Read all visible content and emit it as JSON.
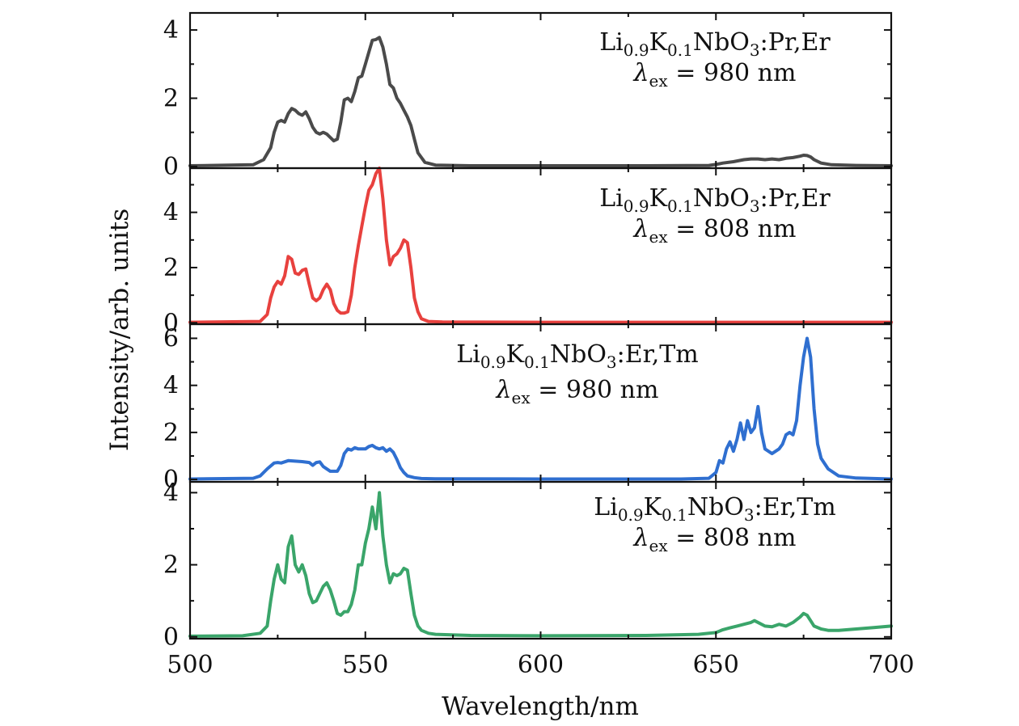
{
  "chart_data": {
    "type": "line",
    "xlabel": "Wavelength/nm",
    "ylabel": "Intensity/arb. units",
    "xlim": [
      500,
      700
    ],
    "x_ticks": [
      500,
      550,
      600,
      650,
      700
    ],
    "x_tick_labels": [
      "500",
      "550",
      "600",
      "650",
      "700"
    ],
    "grid": false,
    "panels": [
      {
        "id": "pr-er-980",
        "color": "#4a4a4a",
        "ylim": [
          -0.05,
          4.5
        ],
        "y_ticks": [
          0,
          2,
          4
        ],
        "y_tick_labels": [
          "0",
          "2",
          "4"
        ],
        "label": {
          "base": "Li",
          "s1": "0.9",
          "k": "K",
          "s2": "0.1",
          "rest": "NbO",
          "s3": "3",
          "dopants": ":Pr,Er",
          "ex_symbol": "λ",
          "ex_sub": "ex",
          "ex_rest": " = 980 nm"
        },
        "x": [
          500,
          518,
          521,
          523,
          524,
          525,
          526,
          527,
          528,
          529,
          530,
          531,
          532,
          533,
          534,
          535,
          536,
          537,
          538,
          539,
          540,
          541,
          542,
          543,
          544,
          545,
          546,
          547,
          548,
          549,
          550,
          551,
          552,
          553,
          554,
          555,
          556,
          557,
          558,
          559,
          560,
          561,
          562,
          563,
          564,
          565,
          567,
          570,
          580,
          600,
          630,
          648,
          650,
          652,
          655,
          658,
          660,
          662,
          664,
          666,
          668,
          670,
          672,
          674,
          675,
          676,
          677,
          678,
          680,
          683,
          690,
          700
        ],
        "y": [
          0.02,
          0.05,
          0.2,
          0.55,
          1.0,
          1.3,
          1.35,
          1.3,
          1.55,
          1.7,
          1.65,
          1.55,
          1.5,
          1.6,
          1.4,
          1.15,
          1.0,
          0.95,
          1.0,
          0.95,
          0.85,
          0.75,
          0.8,
          1.3,
          1.95,
          2.0,
          1.9,
          2.2,
          2.6,
          2.65,
          3.0,
          3.35,
          3.7,
          3.72,
          3.78,
          3.5,
          3.0,
          2.4,
          2.3,
          2.0,
          1.85,
          1.65,
          1.45,
          1.2,
          0.8,
          0.4,
          0.12,
          0.04,
          0.02,
          0.02,
          0.02,
          0.03,
          0.06,
          0.1,
          0.14,
          0.2,
          0.22,
          0.22,
          0.2,
          0.22,
          0.2,
          0.24,
          0.26,
          0.3,
          0.33,
          0.32,
          0.28,
          0.2,
          0.1,
          0.05,
          0.03,
          0.02
        ]
      },
      {
        "id": "pr-er-808",
        "color": "#e8413e",
        "ylim": [
          -0.05,
          5.6
        ],
        "y_ticks": [
          0,
          2,
          4
        ],
        "y_tick_labels": [
          "0",
          "2",
          "4"
        ],
        "label": {
          "base": "Li",
          "s1": "0.9",
          "k": "K",
          "s2": "0.1",
          "rest": "NbO",
          "s3": "3",
          "dopants": ":Pr,Er",
          "ex_symbol": "λ",
          "ex_sub": "ex",
          "ex_rest": " = 808 nm"
        },
        "x": [
          500,
          520,
          522,
          523,
          524,
          525,
          526,
          527,
          528,
          529,
          530,
          531,
          532,
          533,
          534,
          535,
          536,
          537,
          538,
          539,
          540,
          541,
          542,
          543,
          544,
          545,
          546,
          547,
          548,
          549,
          550,
          551,
          552,
          553,
          554,
          555,
          556,
          557,
          558,
          559,
          560,
          561,
          562,
          563,
          564,
          565,
          566,
          568,
          572,
          600,
          650,
          700
        ],
        "y": [
          0.02,
          0.05,
          0.3,
          0.9,
          1.3,
          1.5,
          1.4,
          1.7,
          2.4,
          2.3,
          1.8,
          1.75,
          1.9,
          1.95,
          1.4,
          0.9,
          0.8,
          0.9,
          1.2,
          1.4,
          1.2,
          0.7,
          0.45,
          0.35,
          0.35,
          0.4,
          1.0,
          2.0,
          2.8,
          3.5,
          4.2,
          4.8,
          5.0,
          5.4,
          5.6,
          4.5,
          3.0,
          2.1,
          2.4,
          2.5,
          2.7,
          3.0,
          2.9,
          2.0,
          0.9,
          0.4,
          0.15,
          0.05,
          0.03,
          0.02,
          0.02,
          0.02
        ]
      },
      {
        "id": "er-tm-980",
        "color": "#2f6fd0",
        "ylim": [
          -0.1,
          6.6
        ],
        "y_ticks": [
          0,
          2,
          4,
          6
        ],
        "y_tick_labels": [
          "0",
          "2",
          "4",
          "6"
        ],
        "label": {
          "base": "Li",
          "s1": "0.9",
          "k": "K",
          "s2": "0.1",
          "rest": "NbO",
          "s3": "3",
          "dopants": ":Er,Tm",
          "ex_symbol": "λ",
          "ex_sub": "ex",
          "ex_rest": " = 980 nm"
        },
        "x": [
          500,
          518,
          520,
          522,
          524,
          525,
          526,
          528,
          530,
          532,
          534,
          535,
          536,
          537,
          538,
          540,
          542,
          543,
          544,
          545,
          546,
          547,
          548,
          550,
          551,
          552,
          553,
          554,
          555,
          556,
          557,
          558,
          559,
          560,
          561,
          562,
          564,
          566,
          570,
          600,
          640,
          648,
          650,
          651,
          652,
          653,
          654,
          655,
          656,
          657,
          658,
          659,
          660,
          661,
          662,
          663,
          664,
          666,
          668,
          669,
          670,
          671,
          672,
          673,
          674,
          675,
          676,
          677,
          678,
          679,
          680,
          682,
          685,
          690,
          700
        ],
        "y": [
          0.02,
          0.05,
          0.15,
          0.45,
          0.7,
          0.72,
          0.7,
          0.8,
          0.78,
          0.76,
          0.72,
          0.6,
          0.72,
          0.75,
          0.55,
          0.35,
          0.35,
          0.6,
          1.1,
          1.3,
          1.25,
          1.35,
          1.3,
          1.3,
          1.4,
          1.45,
          1.35,
          1.3,
          1.35,
          1.2,
          1.3,
          1.15,
          0.85,
          0.5,
          0.3,
          0.15,
          0.08,
          0.04,
          0.03,
          0.02,
          0.02,
          0.05,
          0.3,
          0.8,
          0.7,
          1.3,
          1.6,
          1.2,
          1.7,
          2.4,
          1.7,
          2.5,
          2.0,
          2.2,
          3.1,
          2.0,
          1.3,
          1.1,
          1.3,
          1.5,
          1.9,
          2.0,
          1.9,
          2.5,
          4.0,
          5.2,
          6.0,
          5.2,
          3.0,
          1.5,
          0.9,
          0.45,
          0.15,
          0.06,
          0.02
        ]
      },
      {
        "id": "er-tm-808",
        "color": "#3aa56a",
        "ylim": [
          -0.05,
          4.3
        ],
        "y_ticks": [
          0,
          2,
          4
        ],
        "y_tick_labels": [
          "0",
          "2",
          "4"
        ],
        "label": {
          "base": "Li",
          "s1": "0.9",
          "k": "K",
          "s2": "0.1",
          "rest": "NbO",
          "s3": "3",
          "dopants": ":Er,Tm",
          "ex_symbol": "λ",
          "ex_sub": "ex",
          "ex_rest": " = 808 nm"
        },
        "x": [
          500,
          515,
          520,
          522,
          523,
          524,
          525,
          526,
          527,
          528,
          529,
          530,
          531,
          532,
          533,
          534,
          535,
          536,
          537,
          538,
          539,
          540,
          541,
          542,
          543,
          544,
          545,
          546,
          547,
          548,
          549,
          550,
          551,
          552,
          553,
          554,
          555,
          556,
          557,
          558,
          559,
          560,
          561,
          562,
          563,
          564,
          565,
          566,
          568,
          570,
          580,
          600,
          630,
          645,
          650,
          652,
          654,
          656,
          658,
          660,
          661,
          662,
          664,
          666,
          668,
          670,
          672,
          674,
          675,
          676,
          677,
          678,
          680,
          682,
          685,
          690,
          695,
          700
        ],
        "y": [
          0.02,
          0.03,
          0.1,
          0.3,
          1.0,
          1.6,
          2.0,
          1.6,
          1.5,
          2.5,
          2.8,
          2.0,
          1.8,
          2.0,
          1.7,
          1.2,
          0.95,
          1.0,
          1.2,
          1.4,
          1.5,
          1.3,
          1.0,
          0.65,
          0.6,
          0.7,
          0.7,
          0.9,
          1.3,
          2.0,
          2.0,
          2.6,
          3.0,
          3.6,
          3.0,
          4.0,
          2.8,
          2.0,
          1.5,
          1.75,
          1.7,
          1.75,
          1.9,
          1.85,
          1.2,
          0.6,
          0.3,
          0.18,
          0.1,
          0.07,
          0.04,
          0.03,
          0.04,
          0.07,
          0.12,
          0.2,
          0.25,
          0.3,
          0.35,
          0.4,
          0.45,
          0.4,
          0.3,
          0.28,
          0.35,
          0.3,
          0.4,
          0.55,
          0.65,
          0.6,
          0.45,
          0.3,
          0.22,
          0.18,
          0.18,
          0.22,
          0.26,
          0.3
        ]
      }
    ]
  }
}
